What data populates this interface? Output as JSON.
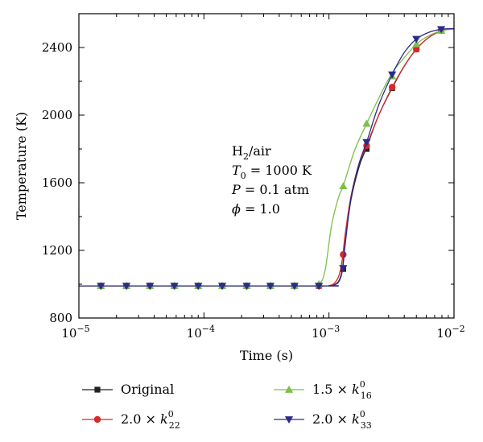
{
  "chart_data": {
    "type": "line",
    "xlabel": "Time (s)",
    "ylabel": "Temperature (K)",
    "x_scale": "log",
    "xlim": [
      1e-05,
      0.01
    ],
    "ylim": [
      800,
      2600
    ],
    "x_ticks": [
      {
        "value": 1e-05,
        "base": "10",
        "exp": "−5"
      },
      {
        "value": 0.0001,
        "base": "10",
        "exp": "−4"
      },
      {
        "value": 0.001,
        "base": "10",
        "exp": "−3"
      },
      {
        "value": 0.01,
        "base": "10",
        "exp": "−2"
      }
    ],
    "y_ticks": [
      {
        "value": 800,
        "label": "800"
      },
      {
        "value": 1200,
        "label": "1200"
      },
      {
        "value": 1600,
        "label": "1600"
      },
      {
        "value": 2000,
        "label": "2000"
      },
      {
        "value": 2400,
        "label": "2400"
      }
    ],
    "grid": false,
    "legend_position": "bottom",
    "annotation": [
      {
        "prefix": "H",
        "sub": "2",
        "suffix": "/air"
      },
      {
        "prefix": "T",
        "sub": "0",
        "suffix": " = 1000 K"
      },
      {
        "prefix": "P",
        "sub": "",
        "suffix": " = 0.1 atm"
      },
      {
        "prefix": "ϕ",
        "sub": "",
        "suffix": " = 1.0"
      }
    ],
    "series": [
      {
        "name": "Original",
        "label_prefix": "",
        "label_sup": "",
        "label_sub": "",
        "color": "#222222",
        "marker": "square",
        "curve": [
          [
            1e-05,
            990
          ],
          [
            0.0008,
            990
          ],
          [
            0.001,
            991
          ],
          [
            0.0011,
            997
          ],
          [
            0.0012,
            1020
          ],
          [
            0.00128,
            1090
          ],
          [
            0.00135,
            1250
          ],
          [
            0.0015,
            1500
          ],
          [
            0.00175,
            1700
          ],
          [
            0.002,
            1810
          ],
          [
            0.0025,
            2000
          ],
          [
            0.0032,
            2160
          ],
          [
            0.004,
            2290
          ],
          [
            0.005,
            2390
          ],
          [
            0.0063,
            2460
          ],
          [
            0.008,
            2500
          ],
          [
            0.01,
            2510
          ]
        ],
        "markers": [
          [
            1.5e-05,
            990
          ],
          [
            2.4e-05,
            990
          ],
          [
            3.7e-05,
            990
          ],
          [
            5.8e-05,
            990
          ],
          [
            9e-05,
            990
          ],
          [
            0.00014,
            990
          ],
          [
            0.00022,
            990
          ],
          [
            0.00034,
            990
          ],
          [
            0.00053,
            990
          ],
          [
            0.00083,
            990
          ],
          [
            0.0013,
            1090
          ],
          [
            0.002,
            1800
          ],
          [
            0.0032,
            2160
          ],
          [
            0.005,
            2390
          ],
          [
            0.0079,
            2500
          ]
        ]
      },
      {
        "name": "2.0 × k22⁰",
        "label_prefix": "2.0 × k",
        "label_sup": "0",
        "label_sub": "22",
        "color": "#d42a2a",
        "marker": "circle",
        "curve": [
          [
            1e-05,
            990
          ],
          [
            0.0008,
            990
          ],
          [
            0.001,
            992
          ],
          [
            0.0011,
            1005
          ],
          [
            0.0012,
            1050
          ],
          [
            0.00128,
            1150
          ],
          [
            0.00135,
            1300
          ],
          [
            0.0015,
            1520
          ],
          [
            0.00175,
            1720
          ],
          [
            0.002,
            1820
          ],
          [
            0.0025,
            2000
          ],
          [
            0.0032,
            2165
          ],
          [
            0.004,
            2290
          ],
          [
            0.005,
            2390
          ],
          [
            0.0063,
            2460
          ],
          [
            0.008,
            2500
          ],
          [
            0.01,
            2510
          ]
        ],
        "markers": [
          [
            1.5e-05,
            990
          ],
          [
            2.4e-05,
            990
          ],
          [
            3.7e-05,
            990
          ],
          [
            5.8e-05,
            990
          ],
          [
            9e-05,
            990
          ],
          [
            0.00014,
            990
          ],
          [
            0.00022,
            990
          ],
          [
            0.00034,
            990
          ],
          [
            0.00053,
            990
          ],
          [
            0.00083,
            990
          ],
          [
            0.0013,
            1175
          ],
          [
            0.002,
            1820
          ],
          [
            0.0032,
            2165
          ],
          [
            0.005,
            2390
          ],
          [
            0.0079,
            2500
          ]
        ]
      },
      {
        "name": "1.5 × k16⁰",
        "label_prefix": "1.5 × k",
        "label_sup": "0",
        "label_sub": "16",
        "color": "#7dbf4a",
        "marker": "triangle-up",
        "curve": [
          [
            1e-05,
            990
          ],
          [
            0.0007,
            990
          ],
          [
            0.00083,
            998
          ],
          [
            0.00093,
            1080
          ],
          [
            0.00105,
            1350
          ],
          [
            0.0012,
            1520
          ],
          [
            0.0013,
            1580
          ],
          [
            0.0016,
            1790
          ],
          [
            0.002,
            1950
          ],
          [
            0.0025,
            2100
          ],
          [
            0.0032,
            2250
          ],
          [
            0.004,
            2340
          ],
          [
            0.005,
            2420
          ],
          [
            0.0063,
            2470
          ],
          [
            0.008,
            2500
          ],
          [
            0.01,
            2510
          ]
        ],
        "markers": [
          [
            1.5e-05,
            990
          ],
          [
            2.4e-05,
            990
          ],
          [
            3.7e-05,
            990
          ],
          [
            5.8e-05,
            990
          ],
          [
            9e-05,
            990
          ],
          [
            0.00014,
            990
          ],
          [
            0.00022,
            990
          ],
          [
            0.00034,
            990
          ],
          [
            0.00053,
            990
          ],
          [
            0.00083,
            1000
          ],
          [
            0.0013,
            1580
          ],
          [
            0.002,
            1950
          ],
          [
            0.0032,
            2230
          ],
          [
            0.005,
            2420
          ],
          [
            0.0079,
            2500
          ]
        ]
      },
      {
        "name": "2.0 × k33⁰",
        "label_prefix": "2.0 × k",
        "label_sup": "0",
        "label_sub": "33",
        "color": "#2b2b8c",
        "marker": "triangle-down",
        "curve": [
          [
            1e-05,
            990
          ],
          [
            0.0008,
            990
          ],
          [
            0.001,
            991
          ],
          [
            0.0011,
            995
          ],
          [
            0.0012,
            1015
          ],
          [
            0.00128,
            1080
          ],
          [
            0.00135,
            1240
          ],
          [
            0.0015,
            1510
          ],
          [
            0.00175,
            1720
          ],
          [
            0.002,
            1840
          ],
          [
            0.0025,
            2060
          ],
          [
            0.0032,
            2240
          ],
          [
            0.004,
            2370
          ],
          [
            0.005,
            2450
          ],
          [
            0.0063,
            2490
          ],
          [
            0.008,
            2508
          ],
          [
            0.01,
            2512
          ]
        ],
        "markers": [
          [
            1.5e-05,
            990
          ],
          [
            2.4e-05,
            990
          ],
          [
            3.7e-05,
            990
          ],
          [
            5.8e-05,
            990
          ],
          [
            9e-05,
            990
          ],
          [
            0.00014,
            990
          ],
          [
            0.00022,
            990
          ],
          [
            0.00034,
            990
          ],
          [
            0.00053,
            990
          ],
          [
            0.00083,
            990
          ],
          [
            0.0013,
            1095
          ],
          [
            0.002,
            1840
          ],
          [
            0.0032,
            2240
          ],
          [
            0.005,
            2450
          ],
          [
            0.0079,
            2508
          ]
        ]
      }
    ]
  }
}
